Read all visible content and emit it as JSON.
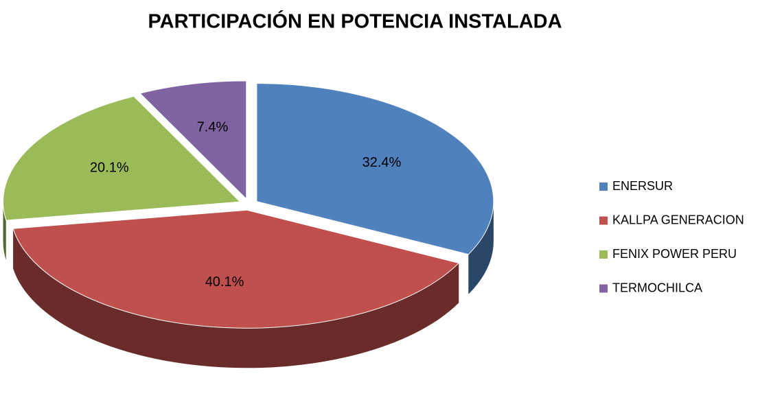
{
  "chart_data": {
    "type": "pie",
    "title": "PARTICIPACIÓN  EN POTENCIA INSTALADA",
    "categories": [
      "ENERSUR",
      "KALLPA GENERACION",
      "FENIX POWER PERU",
      "TERMOCHILCA"
    ],
    "values": [
      32.4,
      40.1,
      20.1,
      7.4
    ],
    "value_labels": [
      "32.4%",
      "40.1%",
      "20.1%",
      "7.4%"
    ],
    "colors": [
      "#4f81bd",
      "#c0504d",
      "#9bbb59",
      "#8064a2"
    ],
    "legend": "right"
  }
}
